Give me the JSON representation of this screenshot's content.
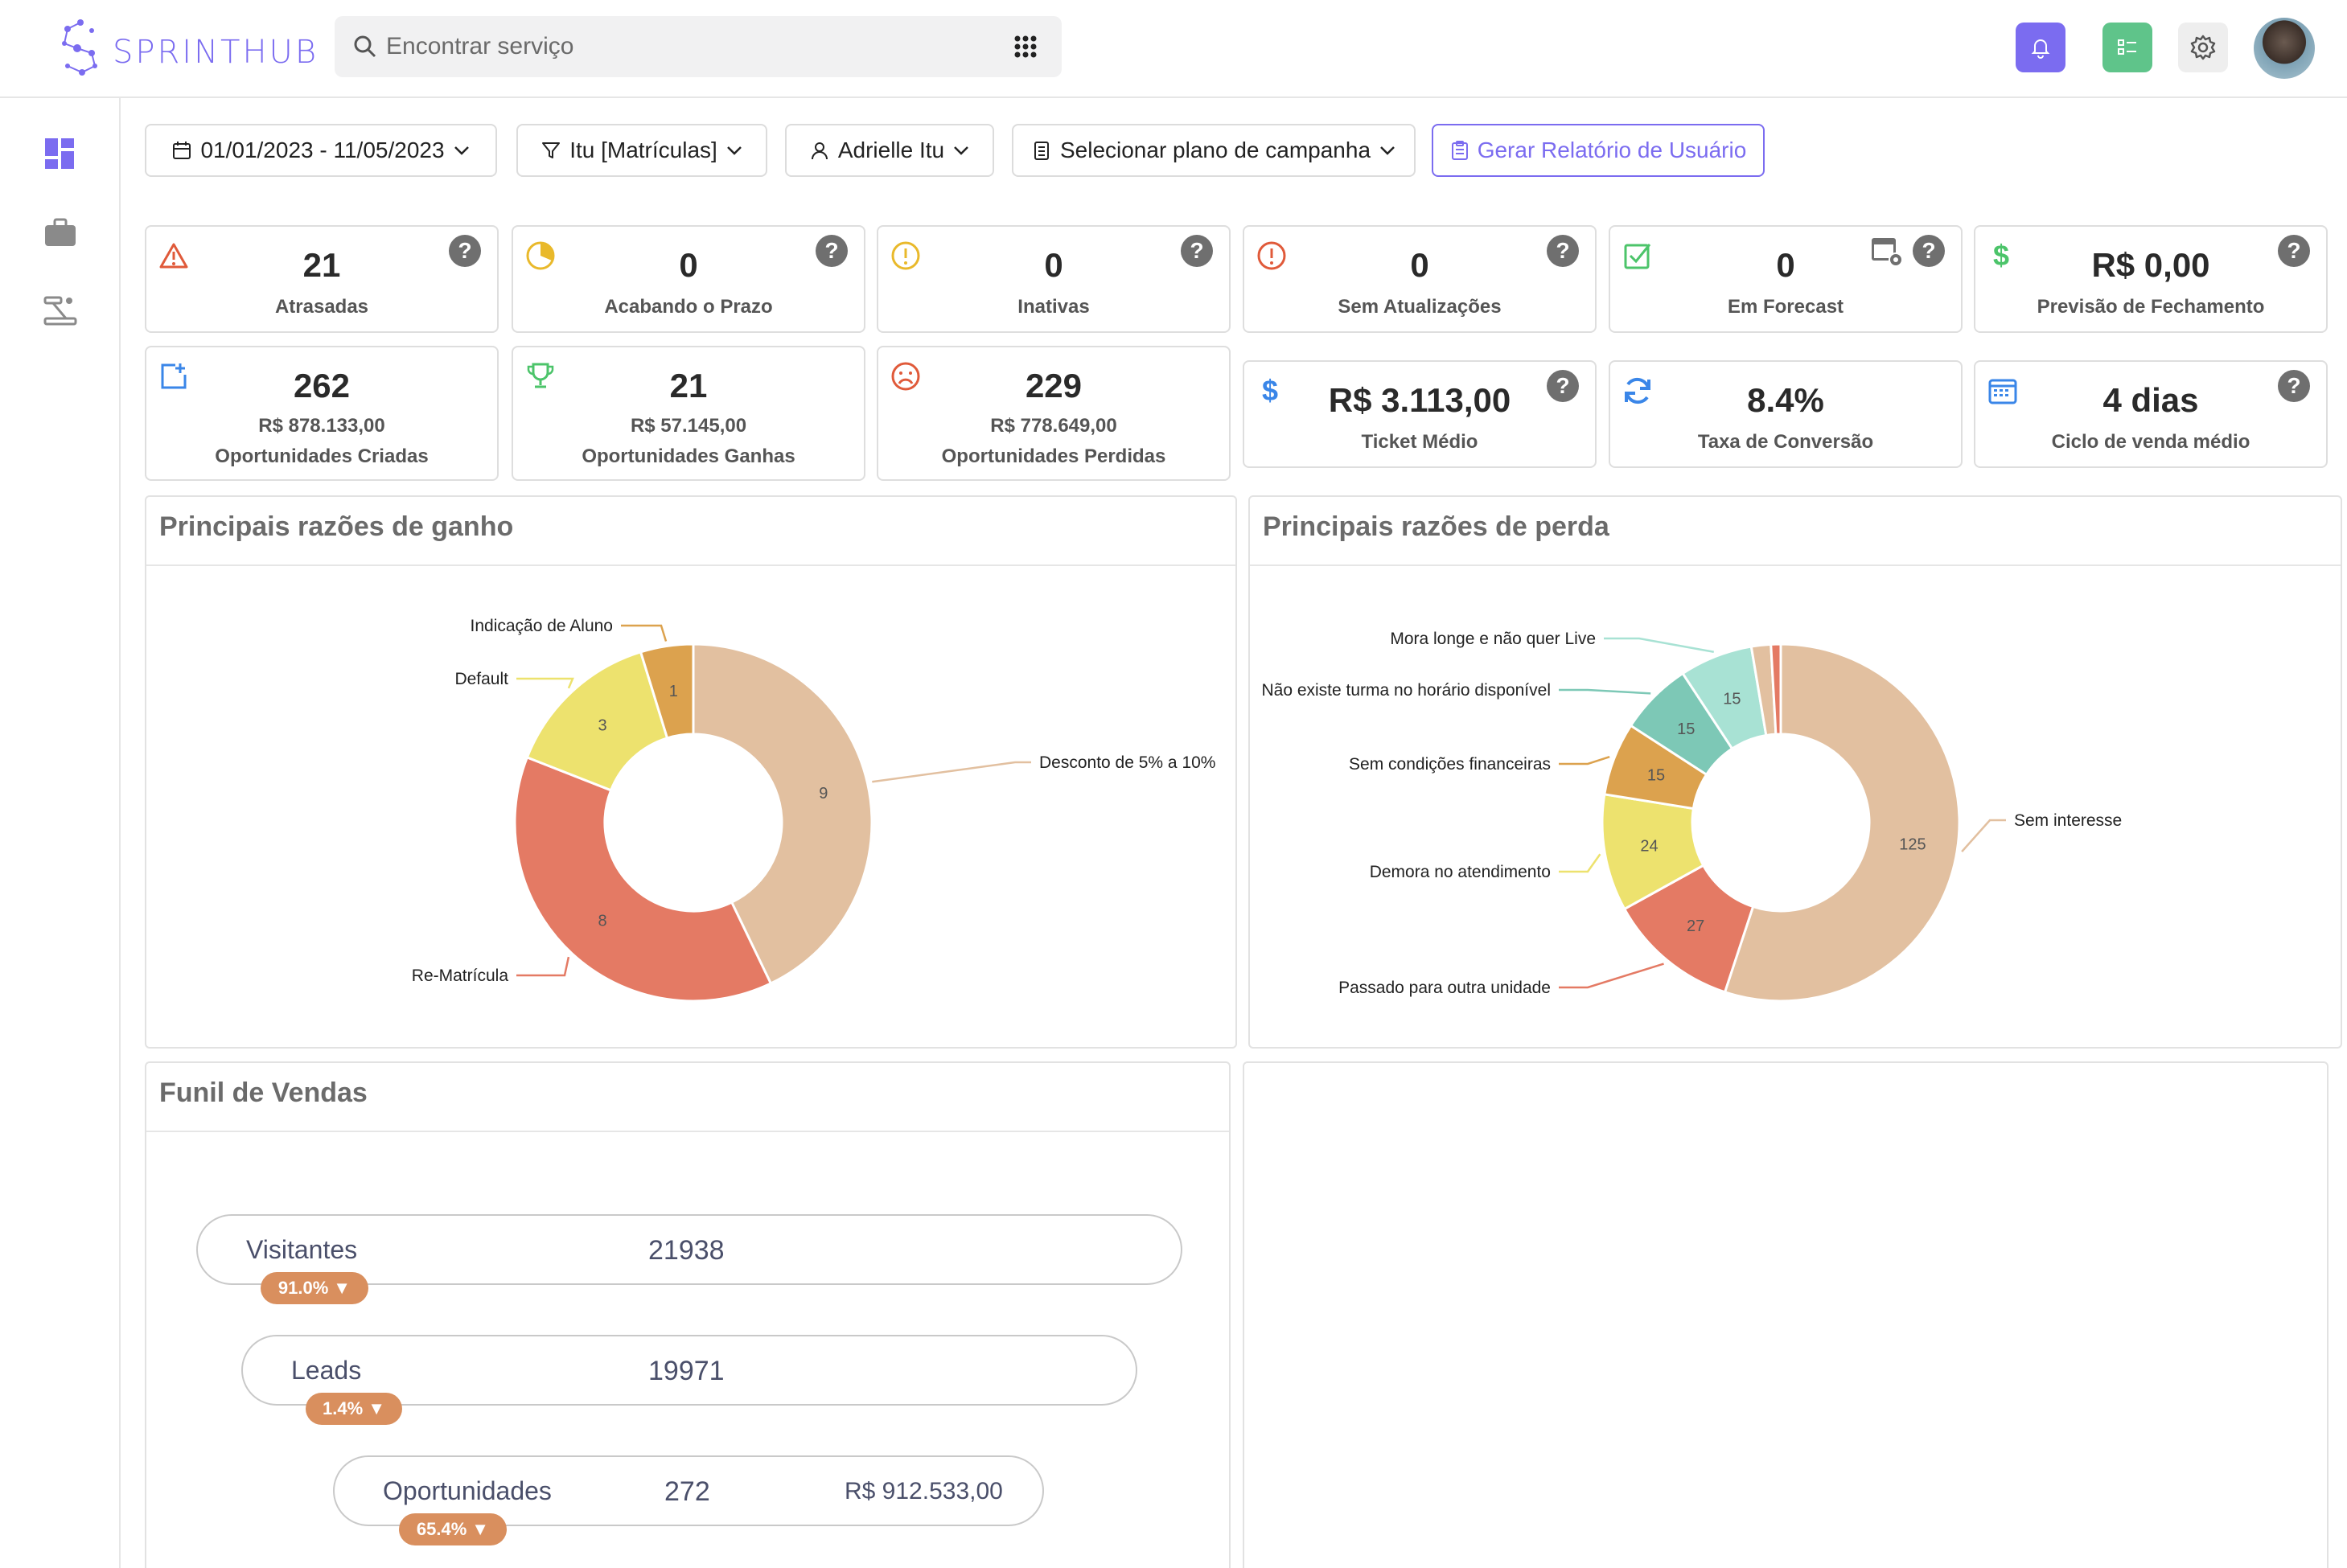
{
  "app": {
    "logo_text": "SPRINTHUB"
  },
  "search": {
    "placeholder": "Encontrar serviço"
  },
  "filters": {
    "date_range": "01/01/2023 - 11/05/2023",
    "unit": "Itu [Matrículas]",
    "user": "Adrielle Itu",
    "campaign": "Selecionar plano de campanha",
    "report_button": "Gerar Relatório de Usuário"
  },
  "kpis_top": [
    {
      "value": "21",
      "label": "Atrasadas",
      "icon": "warning-icon",
      "color": "#e05a3a"
    },
    {
      "value": "0",
      "label": "Acabando o Prazo",
      "icon": "clock-pie-icon",
      "color": "#e9b92b"
    },
    {
      "value": "0",
      "label": "Inativas",
      "icon": "alert-circle-icon",
      "color": "#e9b92b"
    },
    {
      "value": "0",
      "label": "Sem Atualizações",
      "icon": "exclamation-icon",
      "color": "#e05a3a"
    },
    {
      "value": "0",
      "label": "Em Forecast",
      "icon": "check-square-icon",
      "color": "#4cc46a"
    },
    {
      "value": "R$ 0,00",
      "label": "Previsão de Fechamento",
      "icon": "dollar-icon",
      "color": "#4cc46a"
    }
  ],
  "kpis_bottom": [
    {
      "value": "262",
      "sub": "R$ 878.133,00",
      "label": "Oportunidades Criadas",
      "icon": "add-square-icon",
      "color": "#3a86e8"
    },
    {
      "value": "21",
      "sub": "R$ 57.145,00",
      "label": "Oportunidades Ganhas",
      "icon": "trophy-icon",
      "color": "#4cc46a"
    },
    {
      "value": "229",
      "sub": "R$ 778.649,00",
      "label": "Oportunidades Perdidas",
      "icon": "sad-face-icon",
      "color": "#e05a3a"
    }
  ],
  "kpis_right": [
    {
      "value": "R$ 3.113,00",
      "label": "Ticket Médio",
      "icon": "dollar-icon",
      "color": "#3a86e8"
    },
    {
      "value": "8.4%",
      "label": "Taxa de Conversão",
      "icon": "refresh-icon",
      "color": "#3a86e8"
    },
    {
      "value": "4 dias",
      "label": "Ciclo de venda médio",
      "icon": "calendar-icon",
      "color": "#3a86e8"
    }
  ],
  "panels": {
    "win_title": "Principais razões de ganho",
    "loss_title": "Principais razões de perda",
    "funnel_title": "Funil de Vendas"
  },
  "chart_data": [
    {
      "type": "pie",
      "title": "Principais razões de ganho",
      "donut": true,
      "categories": [
        "Desconto de 5% a 10%",
        "Re-Matrícula",
        "Default",
        "Indicação de Aluno"
      ],
      "values": [
        9,
        8,
        3,
        1
      ],
      "colors": [
        "#e2c0a0",
        "#e47a64",
        "#ede26e",
        "#dca24e"
      ]
    },
    {
      "type": "pie",
      "title": "Principais razões de perda",
      "donut": true,
      "categories": [
        "Sem interesse",
        "Passado para outra unidade",
        "Demora no atendimento",
        "Sem condições financeiras",
        "Não existe turma no horário disponível",
        "Mora longe e não quer Live",
        "",
        ""
      ],
      "values": [
        125,
        27,
        24,
        15,
        15,
        15,
        4,
        2
      ],
      "colors": [
        "#e2c0a0",
        "#e47a64",
        "#ede26e",
        "#dca24e",
        "#7dc8b6",
        "#a8e2d4",
        "#e2c0a0",
        "#e47a64"
      ]
    }
  ],
  "funnel": [
    {
      "name": "Visitantes",
      "value": "21938",
      "money": "",
      "badge": "91.0%"
    },
    {
      "name": "Leads",
      "value": "19971",
      "money": "",
      "badge": "1.4%"
    },
    {
      "name": "Oportunidades",
      "value": "272",
      "money": "R$ 912.533,00",
      "badge": "65.4%"
    }
  ]
}
